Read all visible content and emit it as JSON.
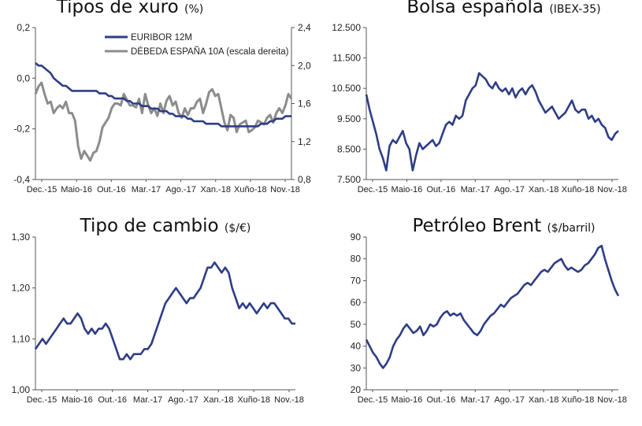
{
  "colors": {
    "navy": "#2e3d86",
    "gray": "#8c8c8c",
    "axis": "#555555"
  },
  "chart_data": [
    {
      "id": "rates",
      "type": "line",
      "title": "Tipos de xuro",
      "title_unit": "(%)",
      "x_ticks": [
        "Dec.-15",
        "Maio-16",
        "Out.-16",
        "Mar.-17",
        "Ago.-17",
        "Xan.-18",
        "Xuño-18",
        "Nov.-18"
      ],
      "y_left": {
        "ticks": [
          "0,2",
          "0,0",
          "-0,2",
          "-0,4"
        ],
        "lim": [
          -0.4,
          0.2
        ]
      },
      "y_right": {
        "ticks": [
          "2,4",
          "2,0",
          "1,6",
          "1,2",
          "0,8"
        ],
        "lim": [
          0.8,
          2.4
        ]
      },
      "legend": [
        "EURIBOR 12M",
        "DÉBEDA ESPAÑA 10A (escala dereita)"
      ],
      "series": [
        {
          "name": "EURIBOR 12M",
          "color": "#2e3d86",
          "axis": "left",
          "values": [
            0.06,
            0.05,
            0.05,
            0.04,
            0.03,
            0.02,
            0.0,
            -0.01,
            -0.02,
            -0.03,
            -0.03,
            -0.04,
            -0.05,
            -0.05,
            -0.05,
            -0.05,
            -0.05,
            -0.05,
            -0.05,
            -0.05,
            -0.05,
            -0.06,
            -0.06,
            -0.06,
            -0.07,
            -0.07,
            -0.08,
            -0.08,
            -0.08,
            -0.08,
            -0.09,
            -0.09,
            -0.1,
            -0.1,
            -0.1,
            -0.11,
            -0.11,
            -0.11,
            -0.12,
            -0.12,
            -0.12,
            -0.13,
            -0.13,
            -0.13,
            -0.14,
            -0.14,
            -0.15,
            -0.15,
            -0.15,
            -0.15,
            -0.16,
            -0.16,
            -0.17,
            -0.17,
            -0.17,
            -0.17,
            -0.18,
            -0.18,
            -0.18,
            -0.18,
            -0.18,
            -0.19,
            -0.19,
            -0.19,
            -0.19,
            -0.19,
            -0.19,
            -0.19,
            -0.19,
            -0.19,
            -0.19,
            -0.19,
            -0.19,
            -0.19,
            -0.18,
            -0.18,
            -0.18,
            -0.17,
            -0.17,
            -0.16,
            -0.16,
            -0.16,
            -0.15,
            -0.15,
            -0.15
          ]
        },
        {
          "name": "DÉBEDA ESPAÑA 10A (escala dereita)",
          "color": "#8c8c8c",
          "axis": "right",
          "values": [
            1.7,
            1.78,
            1.82,
            1.7,
            1.6,
            1.62,
            1.5,
            1.55,
            1.58,
            1.55,
            1.62,
            1.5,
            1.5,
            1.42,
            1.15,
            1.02,
            1.1,
            1.05,
            1.0,
            1.08,
            1.1,
            1.2,
            1.35,
            1.4,
            1.45,
            1.55,
            1.6,
            1.6,
            1.58,
            1.7,
            1.64,
            1.58,
            1.58,
            1.56,
            1.65,
            1.5,
            1.7,
            1.58,
            1.5,
            1.55,
            1.47,
            1.6,
            1.5,
            1.63,
            1.68,
            1.58,
            1.62,
            1.5,
            1.45,
            1.55,
            1.48,
            1.55,
            1.55,
            1.62,
            1.65,
            1.5,
            1.6,
            1.72,
            1.75,
            1.68,
            1.7,
            1.55,
            1.4,
            1.32,
            1.48,
            1.45,
            1.3,
            1.38,
            1.4,
            1.42,
            1.3,
            1.32,
            1.35,
            1.42,
            1.4,
            1.38,
            1.45,
            1.48,
            1.4,
            1.5,
            1.55,
            1.5,
            1.58,
            1.7,
            1.65
          ]
        }
      ]
    },
    {
      "id": "ibex",
      "type": "line",
      "title": "Bolsa española",
      "title_unit": "(IBEX-35)",
      "x_ticks": [
        "Dec.-15",
        "Maio-16",
        "Out.-16",
        "Mar.-17",
        "Ago.-17",
        "Xan.-18",
        "Xuño-18",
        "Nov.-18"
      ],
      "y_left": {
        "ticks": [
          "12.500",
          "11.500",
          "10.500",
          "9.500",
          "8.500",
          "7.500"
        ],
        "lim": [
          7500,
          12500
        ]
      },
      "series": [
        {
          "name": "",
          "color": "#2e3d86",
          "values": [
            10300,
            9800,
            9400,
            9000,
            8500,
            8200,
            7800,
            8600,
            8800,
            8700,
            8900,
            9100,
            8700,
            8500,
            7800,
            8300,
            8700,
            8500,
            8600,
            8700,
            8800,
            8600,
            8700,
            9000,
            9300,
            9400,
            9300,
            9600,
            9500,
            9600,
            10100,
            10300,
            10500,
            10600,
            11000,
            10900,
            10800,
            10600,
            10500,
            10700,
            10500,
            10400,
            10500,
            10300,
            10500,
            10200,
            10400,
            10500,
            10300,
            10500,
            10600,
            10400,
            10100,
            9900,
            9700,
            9800,
            9900,
            9700,
            9500,
            9600,
            9700,
            9900,
            10100,
            9800,
            9700,
            9800,
            9800,
            9500,
            9600,
            9400,
            9500,
            9300,
            9200,
            8900,
            8800,
            9000,
            9100
          ]
        }
      ]
    },
    {
      "id": "fx",
      "type": "line",
      "title": "Tipo de cambio",
      "title_unit": "($/€)",
      "x_ticks": [
        "Dec.-15",
        "Maio-16",
        "Out.-16",
        "Mar.-17",
        "Ago.-17",
        "Xan.-18",
        "Xuño-18",
        "Nov.-18"
      ],
      "y_left": {
        "ticks": [
          "1,30",
          "1,20",
          "1,10",
          "1,00"
        ],
        "lim": [
          1.0,
          1.3
        ]
      },
      "series": [
        {
          "name": "",
          "color": "#2e3d86",
          "values": [
            1.08,
            1.09,
            1.1,
            1.09,
            1.1,
            1.11,
            1.12,
            1.13,
            1.14,
            1.13,
            1.13,
            1.14,
            1.15,
            1.14,
            1.12,
            1.11,
            1.12,
            1.11,
            1.12,
            1.12,
            1.13,
            1.12,
            1.1,
            1.08,
            1.06,
            1.06,
            1.07,
            1.06,
            1.07,
            1.07,
            1.07,
            1.08,
            1.08,
            1.09,
            1.11,
            1.13,
            1.15,
            1.17,
            1.18,
            1.19,
            1.2,
            1.19,
            1.18,
            1.17,
            1.18,
            1.18,
            1.19,
            1.2,
            1.22,
            1.24,
            1.24,
            1.25,
            1.24,
            1.23,
            1.24,
            1.23,
            1.2,
            1.18,
            1.16,
            1.17,
            1.16,
            1.17,
            1.16,
            1.15,
            1.16,
            1.17,
            1.16,
            1.17,
            1.17,
            1.16,
            1.15,
            1.14,
            1.14,
            1.13,
            1.13
          ]
        }
      ]
    },
    {
      "id": "brent",
      "type": "line",
      "title": "Petróleo Brent",
      "title_unit": "($/barril)",
      "x_ticks": [
        "Dec.-15",
        "Maio-16",
        "Out.-16",
        "Mar.-17",
        "Ago.-17",
        "Xan.-18",
        "Xuño-18",
        "Nov.-18"
      ],
      "y_left": {
        "ticks": [
          "90",
          "80",
          "70",
          "60",
          "50",
          "40",
          "30",
          "20"
        ],
        "lim": [
          20,
          90
        ]
      },
      "series": [
        {
          "name": "",
          "color": "#2e3d86",
          "values": [
            43,
            40,
            37,
            35,
            32,
            30,
            32,
            35,
            40,
            43,
            45,
            48,
            50,
            48,
            46,
            47,
            49,
            45,
            47,
            50,
            49,
            50,
            53,
            55,
            56,
            54,
            55,
            54,
            55,
            52,
            50,
            48,
            46,
            45,
            47,
            50,
            52,
            54,
            55,
            57,
            59,
            58,
            60,
            62,
            63,
            64,
            66,
            68,
            69,
            68,
            70,
            72,
            74,
            75,
            74,
            76,
            78,
            79,
            80,
            77,
            75,
            76,
            75,
            74,
            75,
            77,
            78,
            80,
            82,
            85,
            86,
            80,
            75,
            70,
            66,
            63
          ]
        }
      ]
    }
  ]
}
